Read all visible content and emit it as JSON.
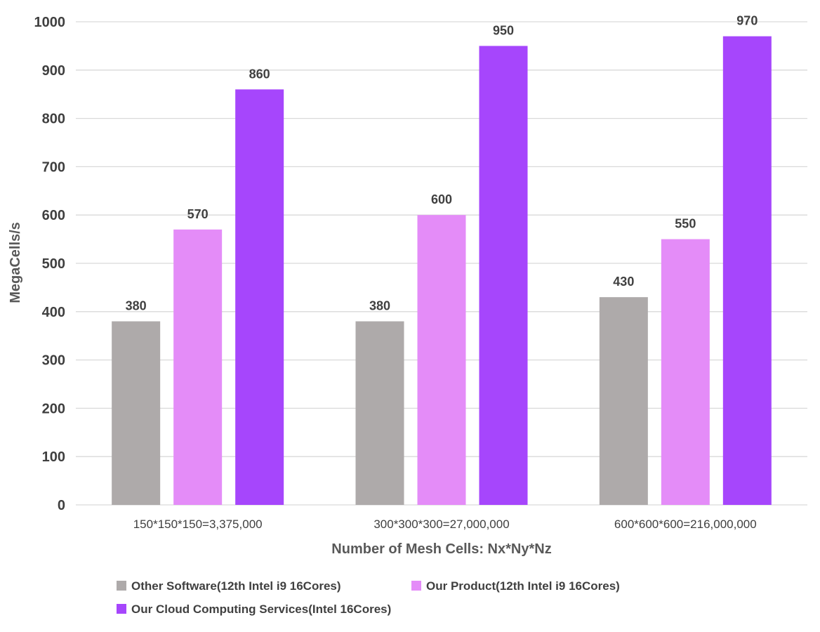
{
  "chart_data": {
    "type": "bar",
    "title": "",
    "xlabel": "Number of Mesh Cells: Nx*Ny*Nz",
    "ylabel": "MegaCells/s",
    "ylim": [
      0,
      1000
    ],
    "yticks": [
      0,
      100,
      200,
      300,
      400,
      500,
      600,
      700,
      800,
      900,
      1000
    ],
    "grid": true,
    "legend_position": "bottom",
    "categories": [
      "150*150*150=3,375,000",
      "300*300*300=27,000,000",
      "600*600*600=216,000,000"
    ],
    "series": [
      {
        "name": "Other Software(12th Intel i9 16Cores)",
        "color": "#aeaaaa",
        "values": [
          380,
          380,
          430
        ]
      },
      {
        "name": "Our Product(12th Intel i9 16Cores)",
        "color": "#e48cf8",
        "values": [
          570,
          600,
          550
        ]
      },
      {
        "name": "Our Cloud Computing Services(Intel 16Cores)",
        "color": "#a646fc",
        "values": [
          860,
          950,
          970
        ]
      }
    ]
  }
}
